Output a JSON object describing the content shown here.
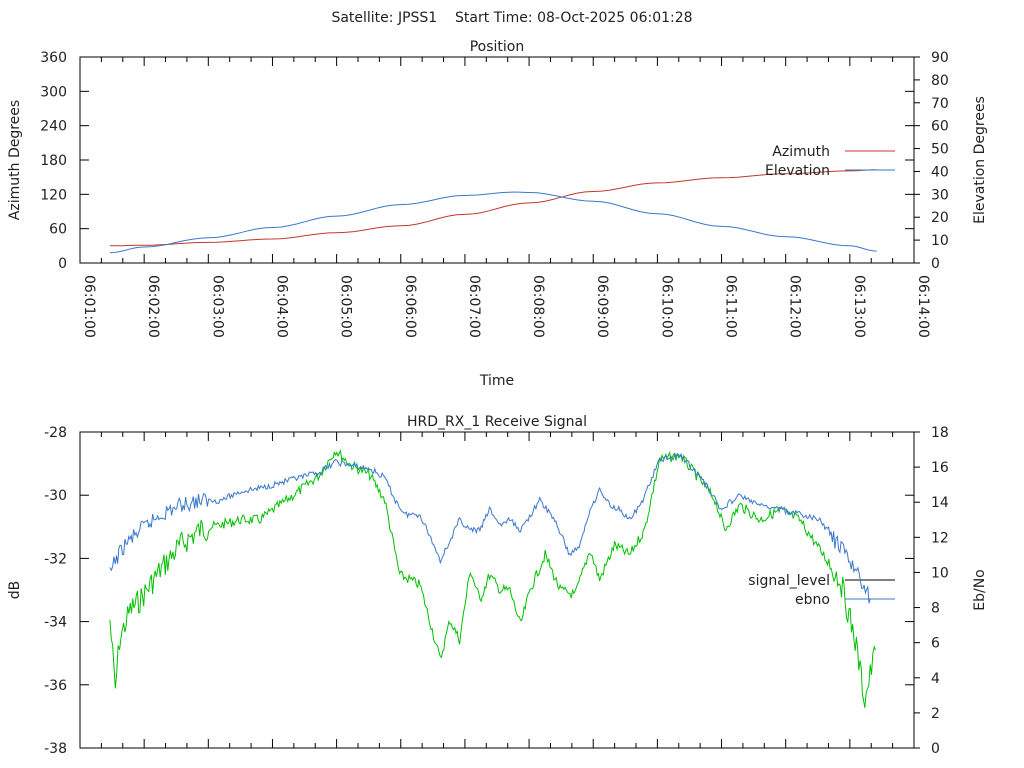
{
  "title": "Satellite: JPSS1    Start Time: 08-Oct-2025 06:01:28",
  "chart_data": [
    {
      "type": "line",
      "title": "Position",
      "xlabel": "Time",
      "ylabel": "Azimuth Degrees",
      "y2label": "Elevation Degrees",
      "x_unit": "seconds since 06:01:00",
      "xlim": [
        0,
        780
      ],
      "ylim": [
        0,
        360
      ],
      "y2lim": [
        0,
        90
      ],
      "xticks": [
        "06:01:00",
        "06:02:00",
        "06:03:00",
        "06:04:00",
        "06:05:00",
        "06:06:00",
        "06:07:00",
        "06:08:00",
        "06:09:00",
        "06:10:00",
        "06:11:00",
        "06:12:00",
        "06:13:00",
        "06:14:00"
      ],
      "yticks": [
        "0",
        "60",
        "120",
        "180",
        "240",
        "300",
        "360"
      ],
      "y2ticks": [
        "0",
        "10",
        "20",
        "30",
        "40",
        "50",
        "60",
        "70",
        "80",
        "90"
      ],
      "legend_position": "right",
      "series": [
        {
          "name": "Azimuth",
          "axis": "y",
          "color": "#c0392b",
          "x": [
            28,
            60,
            120,
            180,
            240,
            300,
            360,
            420,
            480,
            540,
            600,
            660,
            720,
            745
          ],
          "y": [
            30,
            31,
            36,
            42,
            53,
            65,
            85,
            105,
            125,
            140,
            149,
            156,
            161,
            163
          ]
        },
        {
          "name": "Elevation",
          "axis": "y2",
          "color": "#3a78c9",
          "x": [
            28,
            60,
            120,
            180,
            240,
            300,
            360,
            407,
            420,
            480,
            540,
            600,
            660,
            720,
            745
          ],
          "y": [
            4.5,
            7,
            11,
            15.5,
            20.5,
            25.5,
            29.5,
            31,
            30.8,
            27,
            21.5,
            16,
            11.5,
            7.5,
            5.2
          ]
        }
      ]
    },
    {
      "type": "line",
      "title": "HRD_RX_1 Receive Signal",
      "ylabel": "dB",
      "y2label": "Eb/No",
      "x_unit": "seconds since 06:01:00",
      "xlim": [
        0,
        780
      ],
      "ylim": [
        -38,
        -28
      ],
      "y2lim": [
        0,
        18
      ],
      "yticks": [
        "-38",
        "-36",
        "-34",
        "-32",
        "-30",
        "-28"
      ],
      "y2ticks": [
        "0",
        "2",
        "4",
        "6",
        "8",
        "10",
        "12",
        "14",
        "16",
        "18"
      ],
      "legend_position": "right",
      "series": [
        {
          "name": "signal_level",
          "axis": "y",
          "color": "#00c000",
          "legend_color": "#000000",
          "x": [
            28,
            33,
            37,
            47,
            56,
            75,
            94,
            112,
            131,
            150,
            168,
            187,
            206,
            224,
            239,
            253,
            271,
            285,
            299,
            309,
            318,
            327,
            337,
            346,
            355,
            365,
            374,
            383,
            393,
            402,
            412,
            421,
            435,
            449,
            463,
            477,
            486,
            500,
            514,
            528,
            542,
            561,
            580,
            594,
            603,
            617,
            636,
            655,
            673,
            692,
            711,
            725,
            734,
            744
          ],
          "y": [
            -33.95,
            -36.16,
            -34.58,
            -33.63,
            -33.32,
            -32.37,
            -31.58,
            -31.1,
            -30.94,
            -30.78,
            -30.78,
            -30.31,
            -29.84,
            -29.36,
            -28.57,
            -29.04,
            -29.36,
            -30.15,
            -32.53,
            -32.68,
            -32.84,
            -33.95,
            -35.22,
            -33.95,
            -34.58,
            -32.37,
            -33.32,
            -32.53,
            -33.0,
            -33.0,
            -34.11,
            -33.0,
            -31.89,
            -33.0,
            -33.16,
            -31.73,
            -32.68,
            -31.58,
            -31.89,
            -31.1,
            -28.89,
            -28.73,
            -29.52,
            -30.15,
            -31.1,
            -30.31,
            -30.78,
            -30.47,
            -30.78,
            -31.73,
            -32.68,
            -34.58,
            -36.48,
            -34.9
          ]
        },
        {
          "name": "ebno",
          "axis": "y2",
          "color": "#3a78c9",
          "legend_color": "#3a78c9",
          "x": [
            28,
            33,
            42,
            56,
            75,
            94,
            112,
            131,
            150,
            168,
            187,
            206,
            224,
            239,
            253,
            271,
            285,
            295,
            304,
            318,
            327,
            337,
            346,
            355,
            365,
            374,
            383,
            393,
            402,
            412,
            430,
            444,
            458,
            468,
            477,
            486,
            496,
            505,
            514,
            524,
            542,
            561,
            575,
            589,
            599,
            617,
            636,
            655,
            673,
            692,
            706,
            720,
            730,
            739
          ],
          "y": [
            9.85,
            10.7,
            11.56,
            12.4,
            13.27,
            13.84,
            14.1,
            14.1,
            14.6,
            14.8,
            15.1,
            15.4,
            15.7,
            16.3,
            16.1,
            15.9,
            15.4,
            14.1,
            13.3,
            13.3,
            12.1,
            10.7,
            11.8,
            13.0,
            12.4,
            12.4,
            13.6,
            12.7,
            13.0,
            12.4,
            14.1,
            13.0,
            11.0,
            11.6,
            13.6,
            14.7,
            13.8,
            13.6,
            13.0,
            13.8,
            16.4,
            16.7,
            15.8,
            14.7,
            13.6,
            14.4,
            13.8,
            13.6,
            13.3,
            13.0,
            11.8,
            10.7,
            9.6,
            8.5
          ]
        }
      ]
    }
  ]
}
